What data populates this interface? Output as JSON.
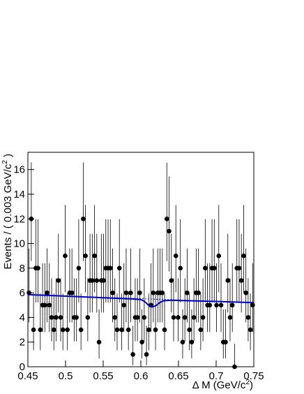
{
  "chart_data": {
    "type": "errorbar",
    "x_label": [
      "Δ M (GeV/c",
      "2",
      ")"
    ],
    "y_label": [
      "Events / ( 0.003 GeV/c",
      "2",
      " )"
    ],
    "bins": {
      "start": 0.45,
      "width": 0.003
    },
    "values": [
      6,
      12,
      3,
      8,
      8,
      3,
      5,
      5,
      6,
      5,
      4,
      3,
      4,
      7,
      4,
      3,
      9,
      3,
      6,
      6,
      4,
      4,
      8,
      3,
      12,
      9,
      4,
      7,
      7,
      9,
      7,
      2,
      7,
      7,
      8,
      8,
      8,
      6,
      4,
      3,
      8,
      3,
      5,
      6,
      3,
      6,
      1,
      4,
      4,
      6,
      2,
      4,
      1,
      3,
      5,
      6,
      3,
      6,
      6,
      6,
      3,
      12,
      11,
      7,
      4,
      9,
      4,
      8,
      2,
      4,
      6,
      3,
      2,
      4,
      6,
      6,
      3,
      4,
      8,
      5,
      5,
      8,
      8,
      5,
      9,
      5,
      2,
      2,
      7,
      4,
      5,
      0,
      8,
      8,
      7,
      9,
      6,
      4,
      3,
      5
    ],
    "fit": {
      "color": "#0000cc",
      "x": [
        0.45,
        0.5,
        0.55,
        0.59,
        0.6,
        0.605,
        0.61,
        0.615,
        0.62,
        0.625,
        0.63,
        0.64,
        0.65,
        0.7,
        0.75
      ],
      "values": [
        5.85,
        5.73,
        5.6,
        5.5,
        5.45,
        5.3,
        5.0,
        4.85,
        4.95,
        5.2,
        5.35,
        5.4,
        5.38,
        5.3,
        5.2
      ]
    },
    "background": {
      "color": "#0000cc",
      "x": [
        0.45,
        0.75
      ],
      "values": [
        5.85,
        5.2
      ]
    },
    "xlim": [
      0.45,
      0.75
    ],
    "xticks": [
      0.45,
      0.5,
      0.55,
      0.6,
      0.65,
      0.7,
      0.75
    ],
    "ylim": [
      0,
      17.4
    ],
    "yticks": [
      0,
      2,
      4,
      6,
      8,
      10,
      12,
      14,
      16
    ]
  }
}
